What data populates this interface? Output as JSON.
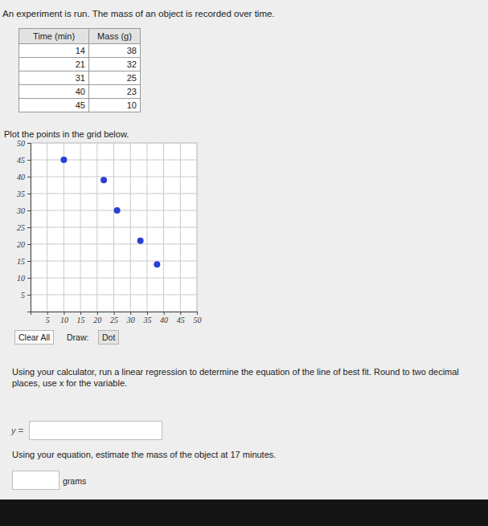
{
  "header": {
    "prompt": "An experiment is run. The mass of an object is recorded over time."
  },
  "table": {
    "columns": [
      "Time (min)",
      "Mass (g)"
    ],
    "rows": [
      [
        14,
        38
      ],
      [
        21,
        32
      ],
      [
        31,
        25
      ],
      [
        40,
        23
      ],
      [
        45,
        10
      ]
    ]
  },
  "plot_instruction": "Plot the points in the grid below.",
  "chart_data": {
    "type": "scatter",
    "x": [
      10,
      22,
      26,
      33,
      38
    ],
    "values": [
      45,
      39,
      30,
      21,
      14
    ],
    "color": "#2a3fd6",
    "marker": "circle",
    "xlim": [
      0,
      50
    ],
    "ylim": [
      0,
      50
    ],
    "xticks": [
      5,
      10,
      15,
      20,
      25,
      30,
      35,
      40,
      45,
      50
    ],
    "yticks": [
      5,
      10,
      15,
      20,
      25,
      30,
      35,
      40,
      45,
      50
    ],
    "grid": true
  },
  "toolbar": {
    "clear_button": "Clear All",
    "draw_label": "Draw:",
    "tool_button": "Dot"
  },
  "question1": {
    "text": "Using your calculator, run a linear regression to determine the equation of the line of best fit. Round to two decimal places, use x for the variable.",
    "input_prefix": "y ="
  },
  "question2": {
    "text": "Using your equation, estimate the mass of the object at 17 minutes.",
    "input_suffix": "grams"
  }
}
